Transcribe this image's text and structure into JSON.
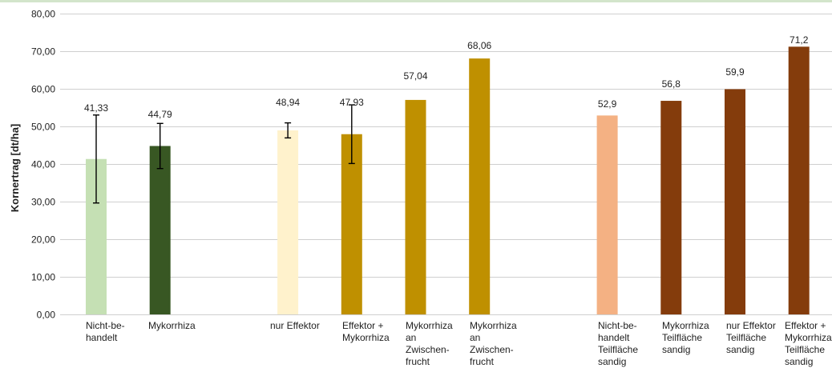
{
  "chart_data": {
    "type": "bar",
    "ylabel": "Kornertrag [dt/ha]",
    "ylim": [
      0,
      80
    ],
    "yticks": [
      0,
      10,
      20,
      30,
      40,
      50,
      60,
      70,
      80
    ],
    "ytick_labels": [
      "0,00",
      "10,00",
      "20,00",
      "30,00",
      "40,00",
      "50,00",
      "60,00",
      "70,00",
      "80,00"
    ],
    "grid": true,
    "legend": "none",
    "categories": [
      [
        "Nicht-be-",
        "handelt"
      ],
      [
        "Mykorrhiza"
      ],
      [
        "nur Effektor"
      ],
      [
        "Effektor +",
        "Mykorrhiza"
      ],
      [
        "Mykorrhiza",
        "an",
        "Zwischen-",
        "frucht"
      ],
      [
        "Mykorrhiza",
        "an",
        "Zwischen-",
        "frucht"
      ],
      [
        "Nicht-be-",
        "handelt",
        "Teilfläche",
        "sandig"
      ],
      [
        "Mykorrhiza",
        "Teilfläche",
        "sandig"
      ],
      [
        "nur Effektor",
        "Teilfläche",
        "sandig"
      ],
      [
        "Effektor +",
        "Mykorrhiza",
        "Teilfläche",
        "sandig"
      ]
    ],
    "values": [
      41.33,
      44.79,
      48.94,
      47.93,
      57.04,
      68.06,
      52.9,
      56.8,
      59.9,
      71.2
    ],
    "value_labels": [
      "41,33",
      "44,79",
      "48,94",
      "47,93",
      "57,04",
      "68,06",
      "52,9",
      "56,8",
      "59,9",
      "71,2"
    ],
    "error_bars": [
      11.7,
      6.0,
      2.0,
      7.8,
      null,
      null,
      null,
      null,
      null,
      null
    ],
    "colors": [
      "#c5e0b4",
      "#385723",
      "#fff2cc",
      "#bf9000",
      "#bf9000",
      "#bf9000",
      "#f4b183",
      "#843c0c",
      "#843c0c",
      "#843c0c"
    ]
  }
}
